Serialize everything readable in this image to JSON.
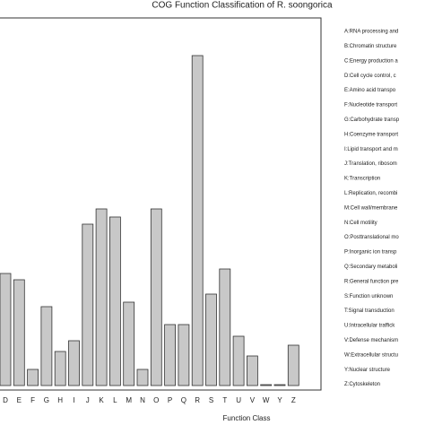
{
  "chart_data": {
    "type": "bar",
    "title": "COG Function Classification of R. soongorica",
    "x_label": "Function Class",
    "categories": [
      "D",
      "E",
      "F",
      "G",
      "H",
      "I",
      "J",
      "K",
      "L",
      "M",
      "N",
      "O",
      "P",
      "Q",
      "R",
      "S",
      "T",
      "U",
      "V",
      "W",
      "Y",
      "Z"
    ],
    "values": [
      125,
      118,
      18,
      88,
      38,
      50,
      180,
      197,
      188,
      93,
      18,
      197,
      68,
      68,
      368,
      102,
      130,
      55,
      33,
      1,
      1,
      45
    ],
    "color": "#c8c8c8",
    "ylim": [
      0,
      400
    ],
    "legend": [
      "A:RNA processing and",
      "B:Chromatin structure",
      "C:Energy production a",
      "D:Cell cycle control, c",
      "E:Amino acid transpo",
      "F:Nucleotide transport",
      "G:Carbohydrate transp",
      "H:Coenzyme transport",
      "I:Lipid transport and m",
      "J:Translation, ribosom",
      "K:Transcription",
      "L:Replication, recombi",
      "M:Cell wall/membrane",
      "N:Cell motility",
      "O:Posttranslational mo",
      "P:Inorganic ion transp",
      "Q:Secondary metaboli",
      "R:General function pre",
      "S:Function unknown",
      "T:Signal transduction",
      "U:Intracellular traffick",
      "V:Defense mechanism",
      "W:Extracellular structu",
      "Y:Nuclear structure",
      "Z:Cytoskeleton"
    ]
  }
}
